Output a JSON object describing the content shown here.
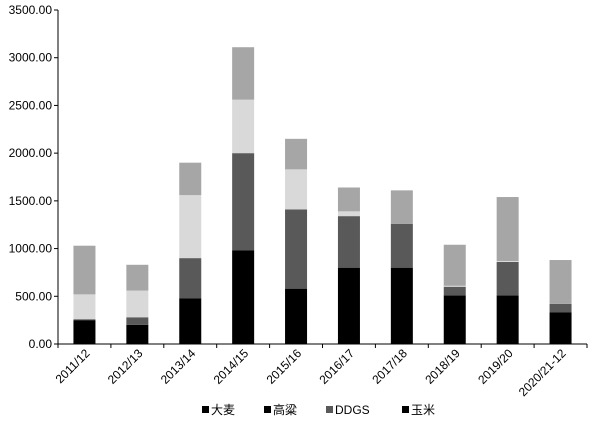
{
  "chart_data": {
    "type": "bar",
    "stacked": true,
    "title": "",
    "xlabel": "",
    "ylabel": "",
    "ylim": [
      0,
      3500
    ],
    "yticks": [
      "0.00",
      "500.00",
      "1000.00",
      "1500.00",
      "2000.00",
      "2500.00",
      "3000.00",
      "3500.00"
    ],
    "grid": false,
    "legend_position": "bottom",
    "categories": [
      "2011/12",
      "2012/13",
      "2013/14",
      "2014/15",
      "2015/16",
      "2016/17",
      "2017/18",
      "2018/19",
      "2019/20",
      "2020/21-12"
    ],
    "series": [
      {
        "name": "大麦",
        "color": "#000000",
        "values": [
          250,
          200,
          480,
          980,
          580,
          800,
          800,
          510,
          510,
          330
        ]
      },
      {
        "name": "高粱",
        "color": "#595959",
        "values": [
          10,
          80,
          420,
          1020,
          830,
          540,
          460,
          90,
          350,
          90
        ]
      },
      {
        "name": "DDGS",
        "color": "#d9d9d9",
        "values": [
          260,
          280,
          660,
          560,
          420,
          50,
          0,
          10,
          10,
          0
        ]
      },
      {
        "name": "玉米",
        "color": "#a6a6a6",
        "values": [
          510,
          270,
          340,
          550,
          320,
          250,
          350,
          430,
          670,
          460
        ]
      }
    ],
    "legend": [
      {
        "label": "大麦",
        "color": "#000000"
      },
      {
        "label": "高粱",
        "color": "#000000"
      },
      {
        "label": "DDGS",
        "color": "#595959"
      },
      {
        "label": "玉米",
        "color": "#000000"
      }
    ]
  }
}
